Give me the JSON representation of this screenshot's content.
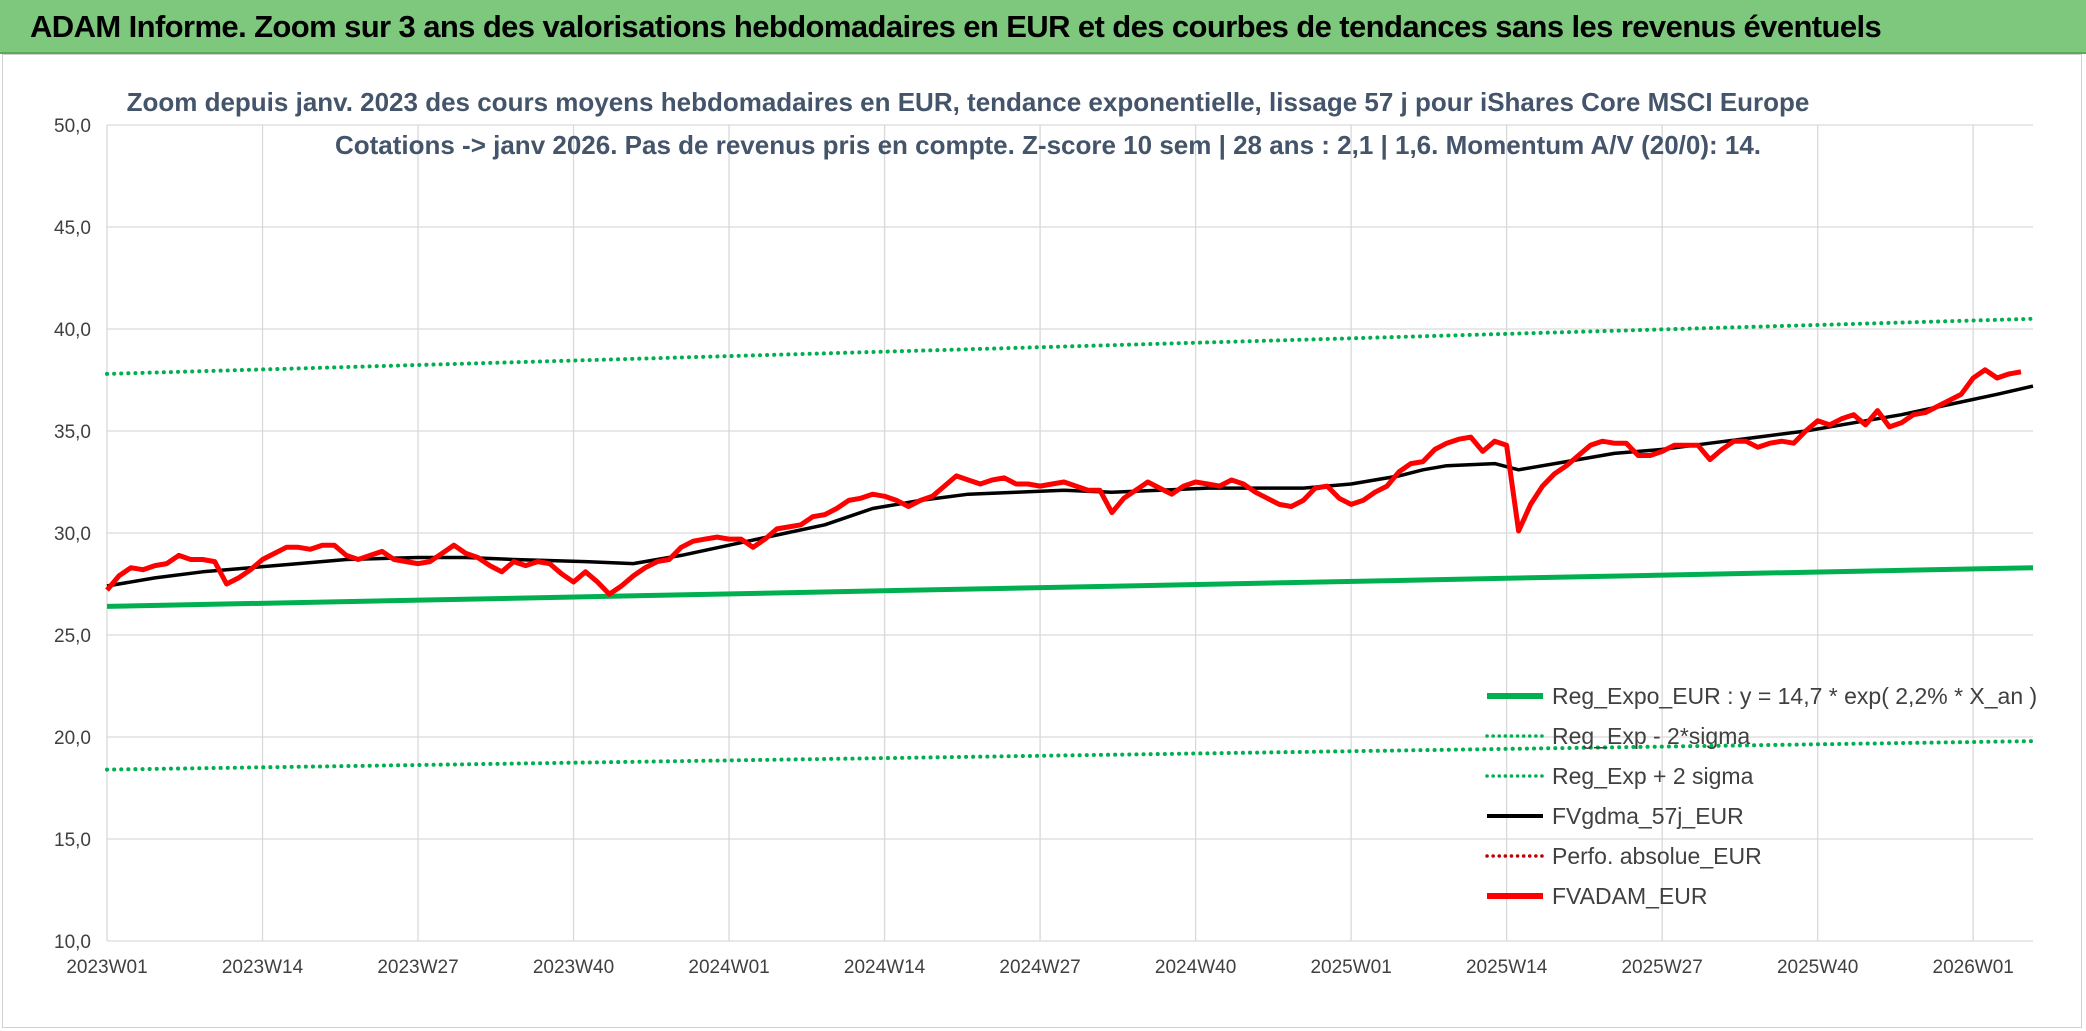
{
  "banner": {
    "title": "ADAM Informe. Zoom sur 3 ans des valorisations hebdomadaires en EUR et des courbes de tendances sans les revenus éventuels"
  },
  "colors": {
    "banner": "#7ec87e",
    "reg_expo": "#00b050",
    "fvgdma": "#000000",
    "fvadam": "#ff0000",
    "perfo": "#c00000",
    "grid": "#d9d9d9",
    "title_text": "#44546a"
  },
  "chart_data": {
    "type": "line",
    "title_lines": [
      "Zoom depuis janv. 2023 des cours moyens hebdomadaires en EUR, tendance exponentielle, lissage 57 j pour iShares Core MSCI Europe",
      "Cotations -> janv 2026. Pas de revenus pris en compte. Z-score 10 sem | 28 ans : 2,1 | 1,6. Momentum A/V (20/0): 14."
    ],
    "xlabel": "",
    "ylabel": "",
    "ylim": [
      10,
      50
    ],
    "y_ticks": [
      "10,0",
      "15,0",
      "20,0",
      "25,0",
      "30,0",
      "35,0",
      "40,0",
      "45,0",
      "50,0"
    ],
    "x_ticks": [
      {
        "label": "2023W01",
        "week": 0
      },
      {
        "label": "2023W14",
        "week": 13
      },
      {
        "label": "2023W27",
        "week": 26
      },
      {
        "label": "2023W40",
        "week": 39
      },
      {
        "label": "2024W01",
        "week": 52
      },
      {
        "label": "2024W14",
        "week": 65
      },
      {
        "label": "2024W27",
        "week": 78
      },
      {
        "label": "2024W40",
        "week": 91
      },
      {
        "label": "2025W01",
        "week": 104
      },
      {
        "label": "2025W14",
        "week": 117
      },
      {
        "label": "2025W27",
        "week": 130
      },
      {
        "label": "2025W40",
        "week": 143
      },
      {
        "label": "2026W01",
        "week": 156
      }
    ],
    "grid": true,
    "legend_position": "bottom-right",
    "series": [
      {
        "name": "Reg_Expo_EUR : y = 14,7 * exp( 2,2% *  X_an )",
        "style": "thick",
        "color": "#00b050",
        "points": [
          [
            0,
            26.4
          ],
          [
            161,
            28.3
          ]
        ]
      },
      {
        "name": "Reg_Exp - 2*sigma",
        "style": "dotted",
        "color": "#00b050",
        "points": [
          [
            0,
            18.4
          ],
          [
            161,
            19.8
          ]
        ]
      },
      {
        "name": "Reg_Exp + 2 sigma",
        "style": "dotted",
        "color": "#00b050",
        "points": [
          [
            0,
            37.8
          ],
          [
            161,
            40.5
          ]
        ]
      },
      {
        "name": "FVgdma_57j_EUR",
        "style": "solid",
        "color": "#000000",
        "points": [
          [
            0,
            27.4
          ],
          [
            4,
            27.8
          ],
          [
            8,
            28.1
          ],
          [
            12,
            28.3
          ],
          [
            16,
            28.5
          ],
          [
            20,
            28.7
          ],
          [
            26,
            28.8
          ],
          [
            30,
            28.8
          ],
          [
            34,
            28.7
          ],
          [
            40,
            28.6
          ],
          [
            44,
            28.5
          ],
          [
            48,
            28.9
          ],
          [
            52,
            29.4
          ],
          [
            56,
            29.9
          ],
          [
            60,
            30.4
          ],
          [
            64,
            31.2
          ],
          [
            68,
            31.6
          ],
          [
            72,
            31.9
          ],
          [
            76,
            32.0
          ],
          [
            80,
            32.1
          ],
          [
            84,
            32.0
          ],
          [
            88,
            32.1
          ],
          [
            92,
            32.2
          ],
          [
            96,
            32.2
          ],
          [
            100,
            32.2
          ],
          [
            104,
            32.4
          ],
          [
            108,
            32.8
          ],
          [
            110,
            33.1
          ],
          [
            112,
            33.3
          ],
          [
            116,
            33.4
          ],
          [
            118,
            33.1
          ],
          [
            122,
            33.5
          ],
          [
            126,
            33.9
          ],
          [
            130,
            34.1
          ],
          [
            134,
            34.4
          ],
          [
            138,
            34.7
          ],
          [
            142,
            35.0
          ],
          [
            146,
            35.4
          ],
          [
            150,
            35.8
          ],
          [
            154,
            36.3
          ],
          [
            158,
            36.8
          ],
          [
            161,
            37.2
          ]
        ]
      },
      {
        "name": "Perfo. absolue_EUR",
        "style": "dotted",
        "color": "#c00000",
        "points": []
      },
      {
        "name": "FVADAM_EUR",
        "style": "thick",
        "color": "#ff0000",
        "points": [
          [
            0,
            27.2
          ],
          [
            1,
            27.9
          ],
          [
            2,
            28.3
          ],
          [
            3,
            28.2
          ],
          [
            4,
            28.4
          ],
          [
            5,
            28.5
          ],
          [
            6,
            28.9
          ],
          [
            7,
            28.7
          ],
          [
            8,
            28.7
          ],
          [
            9,
            28.6
          ],
          [
            10,
            27.5
          ],
          [
            11,
            27.8
          ],
          [
            12,
            28.2
          ],
          [
            13,
            28.7
          ],
          [
            14,
            29.0
          ],
          [
            15,
            29.3
          ],
          [
            16,
            29.3
          ],
          [
            17,
            29.2
          ],
          [
            18,
            29.4
          ],
          [
            19,
            29.4
          ],
          [
            20,
            28.9
          ],
          [
            21,
            28.7
          ],
          [
            22,
            28.9
          ],
          [
            23,
            29.1
          ],
          [
            24,
            28.7
          ],
          [
            25,
            28.6
          ],
          [
            26,
            28.5
          ],
          [
            27,
            28.6
          ],
          [
            28,
            29.0
          ],
          [
            29,
            29.4
          ],
          [
            30,
            29.0
          ],
          [
            31,
            28.8
          ],
          [
            32,
            28.4
          ],
          [
            33,
            28.1
          ],
          [
            34,
            28.6
          ],
          [
            35,
            28.4
          ],
          [
            36,
            28.6
          ],
          [
            37,
            28.5
          ],
          [
            38,
            28.0
          ],
          [
            39,
            27.6
          ],
          [
            40,
            28.1
          ],
          [
            41,
            27.6
          ],
          [
            42,
            27.0
          ],
          [
            43,
            27.4
          ],
          [
            44,
            27.9
          ],
          [
            45,
            28.3
          ],
          [
            46,
            28.6
          ],
          [
            47,
            28.7
          ],
          [
            48,
            29.3
          ],
          [
            49,
            29.6
          ],
          [
            50,
            29.7
          ],
          [
            51,
            29.8
          ],
          [
            52,
            29.7
          ],
          [
            53,
            29.7
          ],
          [
            54,
            29.3
          ],
          [
            55,
            29.7
          ],
          [
            56,
            30.2
          ],
          [
            57,
            30.3
          ],
          [
            58,
            30.4
          ],
          [
            59,
            30.8
          ],
          [
            60,
            30.9
          ],
          [
            61,
            31.2
          ],
          [
            62,
            31.6
          ],
          [
            63,
            31.7
          ],
          [
            64,
            31.9
          ],
          [
            65,
            31.8
          ],
          [
            66,
            31.6
          ],
          [
            67,
            31.3
          ],
          [
            68,
            31.6
          ],
          [
            69,
            31.8
          ],
          [
            70,
            32.3
          ],
          [
            71,
            32.8
          ],
          [
            72,
            32.6
          ],
          [
            73,
            32.4
          ],
          [
            74,
            32.6
          ],
          [
            75,
            32.7
          ],
          [
            76,
            32.4
          ],
          [
            77,
            32.4
          ],
          [
            78,
            32.3
          ],
          [
            79,
            32.4
          ],
          [
            80,
            32.5
          ],
          [
            81,
            32.3
          ],
          [
            82,
            32.1
          ],
          [
            83,
            32.1
          ],
          [
            84,
            31.0
          ],
          [
            85,
            31.7
          ],
          [
            86,
            32.1
          ],
          [
            87,
            32.5
          ],
          [
            88,
            32.2
          ],
          [
            89,
            31.9
          ],
          [
            90,
            32.3
          ],
          [
            91,
            32.5
          ],
          [
            92,
            32.4
          ],
          [
            93,
            32.3
          ],
          [
            94,
            32.6
          ],
          [
            95,
            32.4
          ],
          [
            96,
            32.0
          ],
          [
            97,
            31.7
          ],
          [
            98,
            31.4
          ],
          [
            99,
            31.3
          ],
          [
            100,
            31.6
          ],
          [
            101,
            32.2
          ],
          [
            102,
            32.3
          ],
          [
            103,
            31.7
          ],
          [
            104,
            31.4
          ],
          [
            105,
            31.6
          ],
          [
            106,
            32.0
          ],
          [
            107,
            32.3
          ],
          [
            108,
            33.0
          ],
          [
            109,
            33.4
          ],
          [
            110,
            33.5
          ],
          [
            111,
            34.1
          ],
          [
            112,
            34.4
          ],
          [
            113,
            34.6
          ],
          [
            114,
            34.7
          ],
          [
            115,
            34.0
          ],
          [
            116,
            34.5
          ],
          [
            117,
            34.3
          ],
          [
            118,
            30.1
          ],
          [
            119,
            31.4
          ],
          [
            120,
            32.3
          ],
          [
            121,
            32.9
          ],
          [
            122,
            33.3
          ],
          [
            123,
            33.8
          ],
          [
            124,
            34.3
          ],
          [
            125,
            34.5
          ],
          [
            126,
            34.4
          ],
          [
            127,
            34.4
          ],
          [
            128,
            33.8
          ],
          [
            129,
            33.8
          ],
          [
            130,
            34.0
          ],
          [
            131,
            34.3
          ],
          [
            132,
            34.3
          ],
          [
            133,
            34.3
          ],
          [
            134,
            33.6
          ],
          [
            135,
            34.1
          ],
          [
            136,
            34.5
          ],
          [
            137,
            34.5
          ],
          [
            138,
            34.2
          ],
          [
            139,
            34.4
          ],
          [
            140,
            34.5
          ],
          [
            141,
            34.4
          ],
          [
            142,
            35.0
          ],
          [
            143,
            35.5
          ],
          [
            144,
            35.3
          ],
          [
            145,
            35.6
          ],
          [
            146,
            35.8
          ],
          [
            147,
            35.3
          ],
          [
            148,
            36.0
          ],
          [
            149,
            35.2
          ],
          [
            150,
            35.4
          ],
          [
            151,
            35.8
          ],
          [
            152,
            35.9
          ],
          [
            153,
            36.2
          ],
          [
            154,
            36.5
          ],
          [
            155,
            36.8
          ],
          [
            156,
            37.6
          ],
          [
            157,
            38.0
          ],
          [
            158,
            37.6
          ],
          [
            159,
            37.8
          ],
          [
            160,
            37.9
          ]
        ]
      }
    ]
  }
}
